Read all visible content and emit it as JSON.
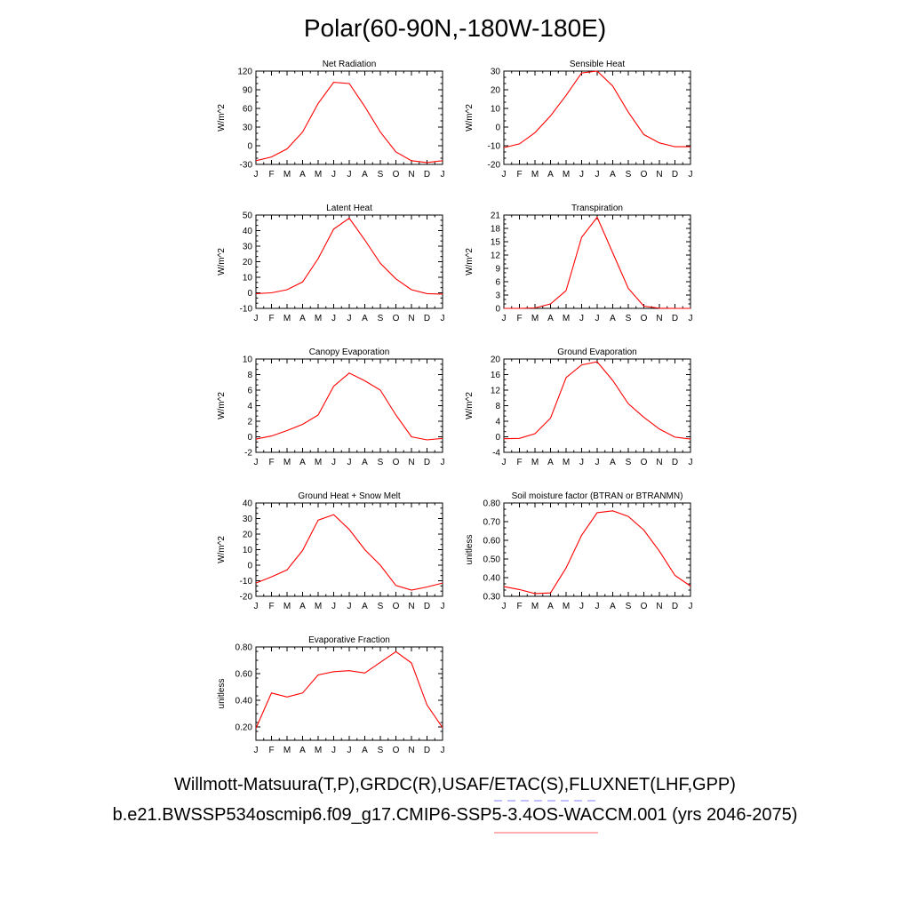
{
  "title": "Polar(60-90N,-180W-180E)",
  "legend": {
    "obs_text": "Willmott-Matsuura(T,P),GRDC(R),USAF/ETAC(S),FLUXNET(LHF,GPP)",
    "case_text": "b.e21.BWSSP534oscmip6.f09_g17.CMIP6-SSP5-3.4OS-WACCM.001 (yrs 2046-2075)",
    "obs_color": "#8080ff",
    "case_color": "#ff8080"
  },
  "colors": {
    "line": "#ff0000",
    "axis": "#000000"
  },
  "chart_data": [
    {
      "type": "line",
      "title": "Net Radiation",
      "ylabel": "W/m^2",
      "categories": [
        "J",
        "F",
        "M",
        "A",
        "M",
        "J",
        "J",
        "A",
        "S",
        "O",
        "N",
        "D",
        "J"
      ],
      "ylim": [
        -30,
        120
      ],
      "yticks": [
        -30,
        0,
        30,
        60,
        90,
        120
      ],
      "ytick_labels": [
        "-30",
        "0",
        "30",
        "60",
        "90",
        "120"
      ],
      "values": [
        -24,
        -18,
        -5,
        22,
        68,
        102,
        100,
        63,
        22,
        -10,
        -24,
        -27,
        -24
      ]
    },
    {
      "type": "line",
      "title": "Sensible Heat",
      "ylabel": "W/m^2",
      "categories": [
        "J",
        "F",
        "M",
        "A",
        "M",
        "J",
        "J",
        "A",
        "S",
        "O",
        "N",
        "D",
        "J"
      ],
      "ylim": [
        -20,
        30
      ],
      "yticks": [
        -20,
        -10,
        0,
        10,
        20,
        30
      ],
      "ytick_labels": [
        "-20",
        "-10",
        "0",
        "10",
        "20",
        "30"
      ],
      "values": [
        -11,
        -9,
        -3,
        6,
        17,
        29,
        30,
        22,
        8,
        -4,
        -8.5,
        -10.5,
        -10.5
      ]
    },
    {
      "type": "line",
      "title": "Latent Heat",
      "ylabel": "W/m^2",
      "categories": [
        "J",
        "F",
        "M",
        "A",
        "M",
        "J",
        "J",
        "A",
        "S",
        "O",
        "N",
        "D",
        "J"
      ],
      "ylim": [
        -10,
        50
      ],
      "yticks": [
        -10,
        0,
        10,
        20,
        30,
        40,
        50
      ],
      "ytick_labels": [
        "-10",
        "0",
        "10",
        "20",
        "30",
        "40",
        "50"
      ],
      "values": [
        -0.5,
        0,
        2,
        7,
        22,
        41,
        48,
        34,
        19,
        9,
        2,
        -0.5,
        -0.8
      ]
    },
    {
      "type": "line",
      "title": "Transpiration",
      "ylabel": "W/m^2",
      "categories": [
        "J",
        "F",
        "M",
        "A",
        "M",
        "J",
        "J",
        "A",
        "S",
        "O",
        "N",
        "D",
        "J"
      ],
      "ylim": [
        0,
        21
      ],
      "yticks": [
        0,
        3,
        6,
        9,
        12,
        15,
        18,
        21
      ],
      "ytick_labels": [
        "0",
        "3",
        "6",
        "9",
        "12",
        "15",
        "18",
        "21"
      ],
      "values": [
        0,
        0,
        0.1,
        1,
        4,
        16,
        20.5,
        12.5,
        4.5,
        0.5,
        0.05,
        0,
        0
      ]
    },
    {
      "type": "line",
      "title": "Canopy Evaporation",
      "ylabel": "W/m^2",
      "categories": [
        "J",
        "F",
        "M",
        "A",
        "M",
        "J",
        "J",
        "A",
        "S",
        "O",
        "N",
        "D",
        "J"
      ],
      "ylim": [
        -2,
        10
      ],
      "yticks": [
        -2,
        0,
        2,
        4,
        6,
        8,
        10
      ],
      "ytick_labels": [
        "-2",
        "0",
        "2",
        "4",
        "6",
        "8",
        "10"
      ],
      "values": [
        -0.3,
        0.1,
        0.8,
        1.6,
        2.8,
        6.5,
        8.2,
        7.2,
        6,
        2.8,
        0,
        -0.4,
        -0.2
      ]
    },
    {
      "type": "line",
      "title": "Ground Evaporation",
      "ylabel": "W/m^2",
      "categories": [
        "J",
        "F",
        "M",
        "A",
        "M",
        "J",
        "J",
        "A",
        "S",
        "O",
        "N",
        "D",
        "J"
      ],
      "ylim": [
        -4,
        20
      ],
      "yticks": [
        -4,
        0,
        4,
        8,
        12,
        16,
        20
      ],
      "ytick_labels": [
        "-4",
        "0",
        "4",
        "8",
        "12",
        "16",
        "20"
      ],
      "values": [
        -0.5,
        -0.4,
        0.8,
        4.8,
        15.2,
        18.5,
        19.3,
        14.5,
        8.5,
        5,
        2,
        -0.1,
        -0.6
      ]
    },
    {
      "type": "line",
      "title": "Ground Heat + Snow Melt",
      "ylabel": "W/m^2",
      "categories": [
        "J",
        "F",
        "M",
        "A",
        "M",
        "J",
        "J",
        "A",
        "S",
        "O",
        "N",
        "D",
        "J"
      ],
      "ylim": [
        -20,
        40
      ],
      "yticks": [
        -20,
        -10,
        0,
        10,
        20,
        30,
        40
      ],
      "ytick_labels": [
        "-20",
        "-10",
        "0",
        "10",
        "20",
        "30",
        "40"
      ],
      "values": [
        -11.5,
        -7.5,
        -3,
        9.5,
        29,
        32.5,
        23,
        10,
        0,
        -13,
        -16,
        -14,
        -11.5
      ]
    },
    {
      "type": "line",
      "title": "Soil moisture factor (BTRAN or BTRANMN)",
      "ylabel": "unitless",
      "categories": [
        "J",
        "F",
        "M",
        "A",
        "M",
        "J",
        "J",
        "A",
        "S",
        "O",
        "N",
        "D",
        "J"
      ],
      "ylim": [
        0.3,
        0.8
      ],
      "yticks": [
        0.3,
        0.4,
        0.5,
        0.6,
        0.7,
        0.8
      ],
      "ytick_labels": [
        "0.30",
        "0.40",
        "0.50",
        "0.60",
        "0.70",
        "0.80"
      ],
      "values": [
        0.352,
        0.336,
        0.315,
        0.318,
        0.452,
        0.627,
        0.748,
        0.758,
        0.728,
        0.655,
        0.542,
        0.412,
        0.355
      ]
    },
    {
      "type": "line",
      "title": "Evaporative Fraction",
      "ylabel": "unitless",
      "categories": [
        "J",
        "F",
        "M",
        "A",
        "M",
        "J",
        "J",
        "A",
        "S",
        "O",
        "N",
        "D",
        "J"
      ],
      "ylim": [
        0.1,
        0.8
      ],
      "yticks": [
        0.2,
        0.4,
        0.6,
        0.8
      ],
      "ytick_labels": [
        "0.20",
        "0.40",
        "0.60",
        "0.80"
      ],
      "values": [
        0.19,
        0.455,
        0.425,
        0.455,
        0.59,
        0.615,
        0.622,
        0.605,
        0.685,
        0.765,
        0.68,
        0.365,
        0.195
      ]
    }
  ]
}
